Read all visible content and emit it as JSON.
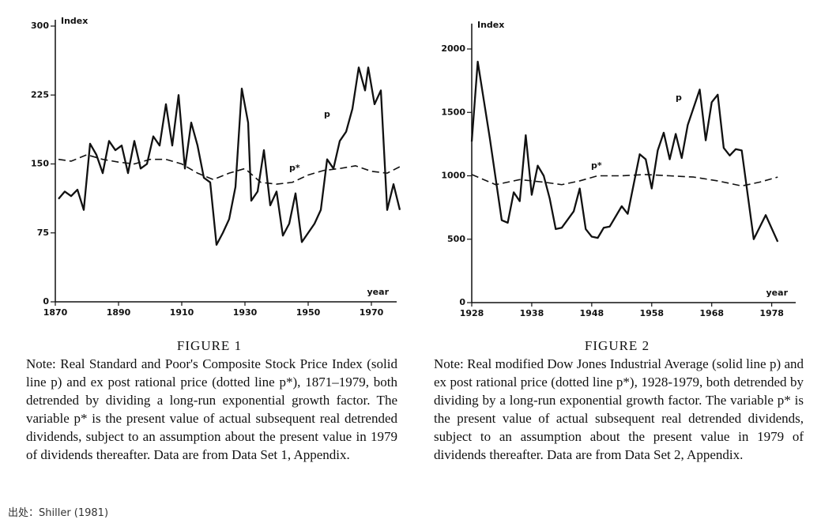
{
  "chart_data": [
    {
      "type": "line",
      "y_label": "Index",
      "x_label": "year",
      "figure": "FIGURE 1",
      "note": "Note: Real Standard and Poor's Composite Stock Price Index (solid line p) and ex post rational price (dotted line p*), 1871–1979, both detrended by dividing a long-run exponential growth factor. The variable p* is the present value of actual subsequent real detrended dividends, subject to an assumption about the present value in 1979 of dividends thereafter. Data are from Data Set 1, Appendix.",
      "xlim": [
        1870,
        1978
      ],
      "xticks": [
        1870,
        1890,
        1910,
        1930,
        1950,
        1970
      ],
      "ylim": [
        0,
        300
      ],
      "yticks": [
        0,
        75,
        150,
        225,
        300
      ],
      "series": [
        {
          "name": "p",
          "color": "#111111",
          "dashed": false,
          "x": [
            1871,
            1873,
            1875,
            1877,
            1879,
            1881,
            1883,
            1885,
            1887,
            1889,
            1891,
            1893,
            1895,
            1897,
            1899,
            1901,
            1903,
            1905,
            1907,
            1909,
            1911,
            1913,
            1915,
            1917,
            1919,
            1921,
            1923,
            1925,
            1927,
            1929,
            1931,
            1932,
            1934,
            1936,
            1938,
            1940,
            1942,
            1944,
            1946,
            1948,
            1950,
            1952,
            1954,
            1956,
            1958,
            1960,
            1962,
            1964,
            1966,
            1968,
            1969,
            1971,
            1973,
            1975,
            1977,
            1979
          ],
          "values": [
            112,
            120,
            115,
            122,
            100,
            172,
            160,
            140,
            175,
            165,
            170,
            140,
            175,
            145,
            150,
            180,
            170,
            215,
            170,
            225,
            145,
            195,
            170,
            135,
            130,
            62,
            75,
            90,
            125,
            232,
            195,
            110,
            120,
            165,
            105,
            120,
            72,
            85,
            118,
            65,
            75,
            85,
            100,
            155,
            145,
            175,
            185,
            210,
            255,
            230,
            255,
            215,
            230,
            100,
            128,
            100
          ]
        },
        {
          "name": "p*",
          "color": "#111111",
          "dashed": true,
          "x": [
            1871,
            1875,
            1880,
            1885,
            1890,
            1895,
            1900,
            1905,
            1910,
            1915,
            1920,
            1925,
            1930,
            1935,
            1940,
            1945,
            1950,
            1955,
            1960,
            1965,
            1970,
            1975,
            1979
          ],
          "values": [
            155,
            153,
            160,
            155,
            152,
            150,
            155,
            155,
            150,
            140,
            133,
            140,
            145,
            130,
            128,
            130,
            138,
            143,
            145,
            148,
            142,
            140,
            147
          ]
        }
      ]
    },
    {
      "type": "line",
      "y_label": "Index",
      "x_label": "year",
      "figure": "FIGURE 2",
      "note": "Note: Real modified Dow Jones Industrial Average (solid line p) and ex post rational price (dotted line p*), 1928-1979, both detrended by dividing by a long-run exponential growth factor. The variable p* is the present value of actual subsequent real detrended dividends, subject to an assumption about the present value in 1979 of dividends thereafter. Data are from Data Set 2, Appendix.",
      "xlim": [
        1928,
        1982
      ],
      "xticks": [
        1928,
        1938,
        1948,
        1958,
        1968,
        1978
      ],
      "ylim": [
        0,
        2150
      ],
      "yticks": [
        0,
        500,
        1000,
        1500,
        2000
      ],
      "series": [
        {
          "name": "p",
          "color": "#111111",
          "dashed": false,
          "x": [
            1928,
            1929,
            1931,
            1933,
            1934,
            1935,
            1936,
            1937,
            1938,
            1939,
            1940,
            1941,
            1942,
            1943,
            1945,
            1946,
            1947,
            1948,
            1949,
            1950,
            1951,
            1953,
            1954,
            1956,
            1957,
            1958,
            1959,
            1960,
            1961,
            1962,
            1963,
            1964,
            1966,
            1967,
            1968,
            1969,
            1970,
            1971,
            1972,
            1973,
            1975,
            1977,
            1979
          ],
          "values": [
            1270,
            1900,
            1300,
            650,
            630,
            870,
            800,
            1320,
            850,
            1080,
            1000,
            820,
            580,
            590,
            720,
            900,
            580,
            520,
            510,
            590,
            600,
            760,
            700,
            1170,
            1130,
            900,
            1200,
            1340,
            1130,
            1330,
            1140,
            1400,
            1680,
            1280,
            1580,
            1640,
            1220,
            1160,
            1210,
            1200,
            500,
            690,
            480
          ]
        },
        {
          "name": "p*",
          "color": "#111111",
          "dashed": true,
          "x": [
            1928,
            1932,
            1936,
            1940,
            1943,
            1946,
            1949,
            1953,
            1957,
            1961,
            1965,
            1969,
            1973,
            1976,
            1979
          ],
          "values": [
            1010,
            930,
            970,
            950,
            930,
            960,
            1000,
            1000,
            1010,
            1000,
            990,
            960,
            920,
            950,
            990
          ]
        }
      ]
    }
  ],
  "source": "出处：Shiller (1981)"
}
